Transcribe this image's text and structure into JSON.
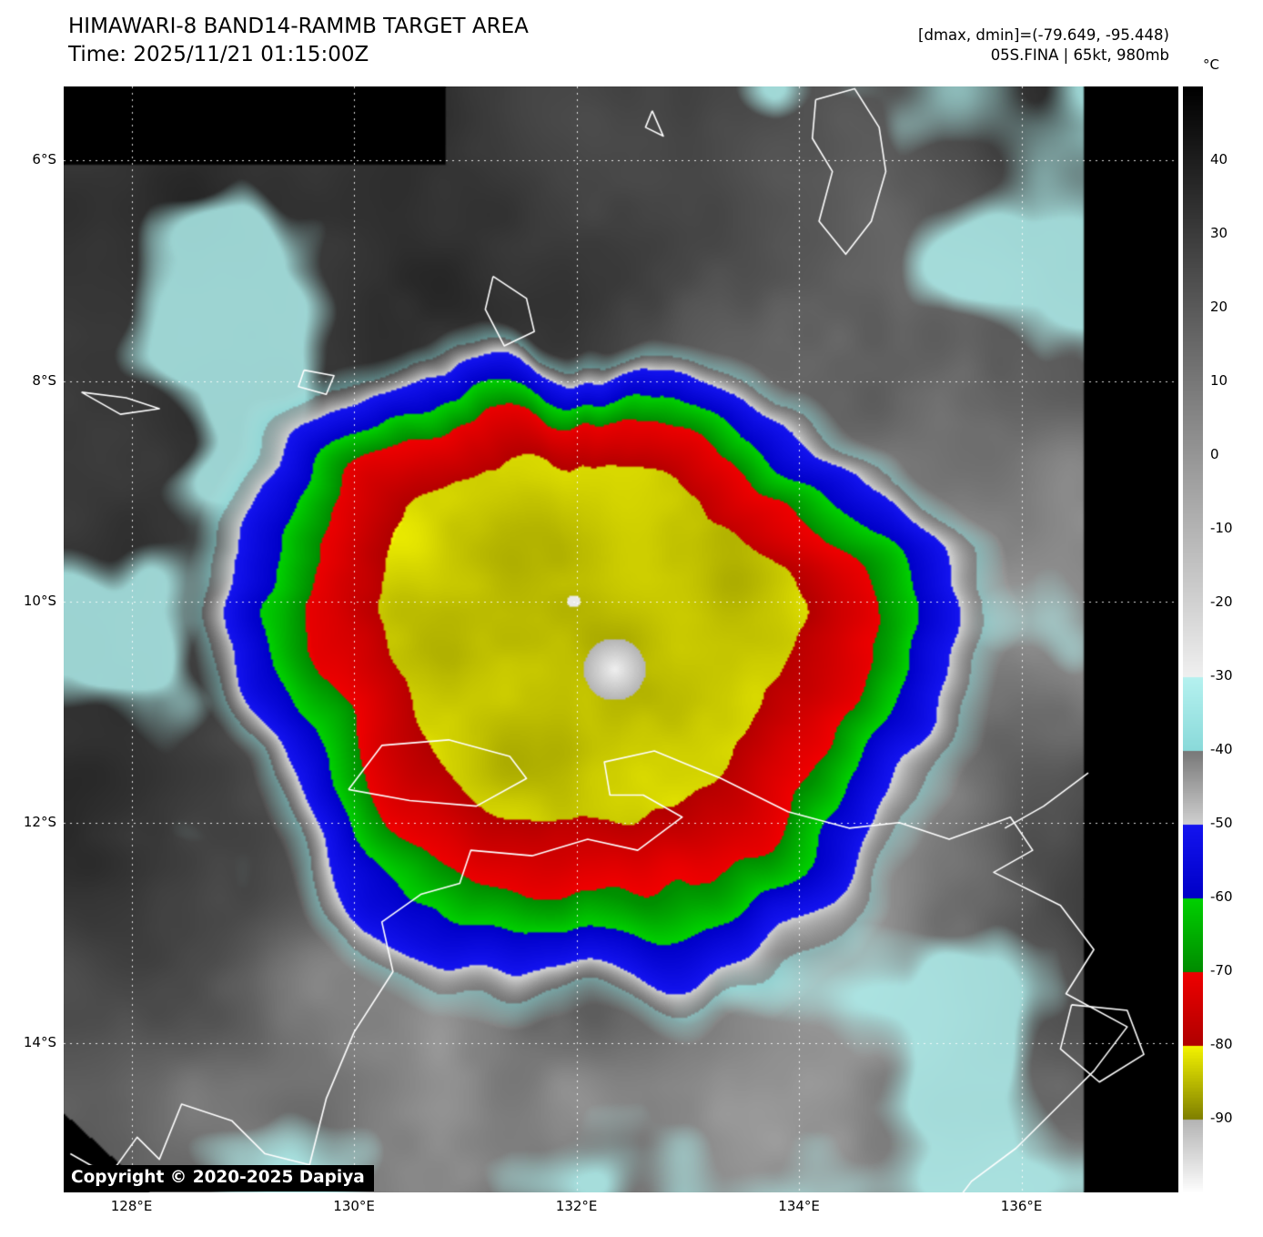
{
  "header": {
    "title": "HIMAWARI-8 BAND14-RAMMB TARGET AREA",
    "time_label": "Time: 2025/11/21 01:15:00Z",
    "dmax_dmin_label": "[dmax, dmin]=(-79.649, -95.448)",
    "storm_label": "05S.FINA | 65kt, 980mb"
  },
  "footer": {
    "copyright": "Copyright © 2020-2025 Dapiya"
  },
  "colorbar": {
    "unit": "°C",
    "temp_range": [
      50,
      -100
    ],
    "ticks": [
      {
        "label": "40",
        "value": 40
      },
      {
        "label": "30",
        "value": 30
      },
      {
        "label": "20",
        "value": 20
      },
      {
        "label": "10",
        "value": 10
      },
      {
        "label": "0",
        "value": 0
      },
      {
        "label": "-10",
        "value": -10
      },
      {
        "label": "-20",
        "value": -20
      },
      {
        "label": "-30",
        "value": -30
      },
      {
        "label": "-40",
        "value": -40
      },
      {
        "label": "-50",
        "value": -50
      },
      {
        "label": "-60",
        "value": -60
      },
      {
        "label": "-70",
        "value": -70
      },
      {
        "label": "-80",
        "value": -80
      },
      {
        "label": "-90",
        "value": -90
      }
    ],
    "segments": [
      {
        "from": 50,
        "to": -30,
        "colors": [
          "#000000",
          "#f0f0f0"
        ]
      },
      {
        "from": -30,
        "to": -40,
        "colors": [
          "#b6f2f0",
          "#8adada"
        ]
      },
      {
        "from": -40,
        "to": -50,
        "colors": [
          "#787878",
          "#d0d0d0"
        ]
      },
      {
        "from": -50,
        "to": -60,
        "colors": [
          "#1414f0",
          "#0000c8"
        ]
      },
      {
        "from": -60,
        "to": -70,
        "colors": [
          "#00d200",
          "#008c00"
        ]
      },
      {
        "from": -70,
        "to": -80,
        "colors": [
          "#f00000",
          "#b00000"
        ]
      },
      {
        "from": -80,
        "to": -90,
        "colors": [
          "#f5f500",
          "#808000"
        ]
      },
      {
        "from": -90,
        "to": -100,
        "colors": [
          "#b4b4b4",
          "#ffffff"
        ]
      }
    ]
  },
  "axes": {
    "lat_ticks": [
      {
        "label": "6°S",
        "value": -6
      },
      {
        "label": "8°S",
        "value": -8
      },
      {
        "label": "10°S",
        "value": -10
      },
      {
        "label": "12°S",
        "value": -12
      },
      {
        "label": "14°S",
        "value": -14
      }
    ],
    "lon_ticks": [
      {
        "label": "128°E",
        "value": 128
      },
      {
        "label": "130°E",
        "value": 130
      },
      {
        "label": "132°E",
        "value": 132
      },
      {
        "label": "134°E",
        "value": 134
      },
      {
        "label": "136°E",
        "value": 136
      }
    ],
    "lon_range": [
      127.39,
      137.41
    ],
    "lat_range": [
      -5.33,
      -15.35
    ],
    "grid": "dotted-white"
  },
  "chart_data": {
    "type": "heatmap",
    "title": "HIMAWARI-8 BAND14-RAMMB TARGET AREA",
    "satellite": "HIMAWARI-8",
    "band": "BAND14",
    "time_utc": "2025/11/21 01:15:00Z",
    "dmax_c": -79.649,
    "dmin_c": -95.448,
    "storm": {
      "id": "05S.FINA",
      "intensity_kt": 65,
      "pressure_mb": 980,
      "center_lon": 132.0,
      "center_lat": -10.0
    },
    "lon_range": [
      127.39,
      137.41
    ],
    "lat_range": [
      -5.33,
      -15.35
    ],
    "no_data_color": "#000000",
    "coastlines": [
      {
        "name": "kai-islands",
        "points": [
          [
            132.68,
            -5.55
          ],
          [
            132.78,
            -5.78
          ],
          [
            132.62,
            -5.7
          ],
          [
            132.68,
            -5.55
          ]
        ]
      },
      {
        "name": "aru-islands",
        "points": [
          [
            134.15,
            -5.45
          ],
          [
            134.5,
            -5.35
          ],
          [
            134.72,
            -5.7
          ],
          [
            134.78,
            -6.1
          ],
          [
            134.65,
            -6.55
          ],
          [
            134.42,
            -6.85
          ],
          [
            134.18,
            -6.55
          ],
          [
            134.3,
            -6.1
          ],
          [
            134.12,
            -5.8
          ],
          [
            134.15,
            -5.45
          ]
        ]
      },
      {
        "name": "tanimbar-islands",
        "points": [
          [
            131.25,
            -7.05
          ],
          [
            131.55,
            -7.25
          ],
          [
            131.62,
            -7.55
          ],
          [
            131.35,
            -7.68
          ],
          [
            131.18,
            -7.35
          ],
          [
            131.25,
            -7.05
          ]
        ]
      },
      {
        "name": "babar-island",
        "points": [
          [
            129.55,
            -7.9
          ],
          [
            129.82,
            -7.95
          ],
          [
            129.75,
            -8.12
          ],
          [
            129.5,
            -8.05
          ],
          [
            129.55,
            -7.9
          ]
        ]
      },
      {
        "name": "leti-moa-islands",
        "points": [
          [
            127.55,
            -8.1
          ],
          [
            127.95,
            -8.15
          ],
          [
            128.25,
            -8.25
          ],
          [
            127.9,
            -8.3
          ],
          [
            127.55,
            -8.1
          ]
        ]
      },
      {
        "name": "tiwi-islands",
        "points": [
          [
            129.95,
            -11.7
          ],
          [
            130.25,
            -11.3
          ],
          [
            130.85,
            -11.25
          ],
          [
            131.4,
            -11.4
          ],
          [
            131.55,
            -11.6
          ],
          [
            131.1,
            -11.85
          ],
          [
            130.5,
            -11.8
          ],
          [
            129.95,
            -11.7
          ]
        ]
      },
      {
        "name": "australia-north-coast",
        "points": [
          [
            127.45,
            -15.0
          ],
          [
            127.8,
            -15.2
          ],
          [
            128.05,
            -14.85
          ],
          [
            128.25,
            -15.05
          ],
          [
            128.45,
            -14.55
          ],
          [
            128.9,
            -14.7
          ],
          [
            129.2,
            -15.0
          ],
          [
            129.6,
            -15.1
          ],
          [
            129.75,
            -14.5
          ],
          [
            130.0,
            -13.9
          ],
          [
            130.35,
            -13.35
          ],
          [
            130.25,
            -12.9
          ],
          [
            130.6,
            -12.65
          ],
          [
            130.95,
            -12.55
          ],
          [
            131.05,
            -12.25
          ],
          [
            131.6,
            -12.3
          ],
          [
            132.1,
            -12.15
          ],
          [
            132.55,
            -12.25
          ],
          [
            132.95,
            -11.95
          ],
          [
            132.6,
            -11.75
          ],
          [
            132.3,
            -11.75
          ],
          [
            132.25,
            -11.45
          ],
          [
            132.7,
            -11.35
          ],
          [
            133.3,
            -11.6
          ],
          [
            133.9,
            -11.9
          ],
          [
            134.45,
            -12.05
          ],
          [
            134.9,
            -12.0
          ],
          [
            135.35,
            -12.15
          ],
          [
            135.9,
            -11.95
          ],
          [
            136.1,
            -12.25
          ],
          [
            135.75,
            -12.45
          ],
          [
            136.35,
            -12.75
          ],
          [
            136.65,
            -13.15
          ],
          [
            136.4,
            -13.55
          ],
          [
            136.95,
            -13.85
          ],
          [
            136.65,
            -14.25
          ],
          [
            136.35,
            -14.55
          ],
          [
            135.95,
            -14.95
          ],
          [
            135.55,
            -15.25
          ],
          [
            135.4,
            -15.45
          ]
        ]
      },
      {
        "name": "groote-eylandt",
        "points": [
          [
            136.45,
            -13.65
          ],
          [
            136.95,
            -13.7
          ],
          [
            137.1,
            -14.1
          ],
          [
            136.7,
            -14.35
          ],
          [
            136.35,
            -14.05
          ],
          [
            136.45,
            -13.65
          ]
        ]
      },
      {
        "name": "wessel-islands",
        "points": [
          [
            136.6,
            -11.55
          ],
          [
            136.2,
            -11.85
          ],
          [
            135.85,
            -12.05
          ]
        ]
      }
    ]
  }
}
